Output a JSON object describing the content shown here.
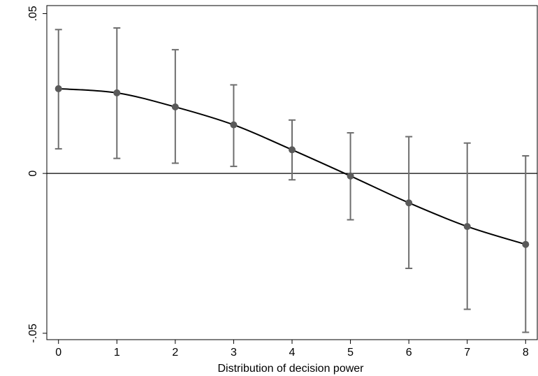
{
  "chart_data": {
    "type": "line",
    "title": "",
    "xlabel": "Distribution of decision power",
    "ylabel": "",
    "xlim": [
      -0.2,
      8.2
    ],
    "ylim": [
      -0.052,
      0.0525
    ],
    "x_ticks": [
      0,
      1,
      2,
      3,
      4,
      5,
      6,
      7,
      8
    ],
    "x_tick_labels": [
      "0",
      "1",
      "2",
      "3",
      "4",
      "5",
      "6",
      "7",
      "8"
    ],
    "y_ticks": [
      -0.05,
      0,
      0.05
    ],
    "y_tick_labels": [
      "-.05",
      "0",
      ".05"
    ],
    "reference_line_y": 0,
    "grid": false,
    "series": [
      {
        "x": [
          0,
          1,
          2,
          3,
          4,
          5,
          6,
          7,
          8
        ],
        "y": [
          0.0265,
          0.0252,
          0.0208,
          0.0152,
          0.0074,
          -0.0008,
          -0.0092,
          -0.0166,
          -0.0222
        ],
        "ci_low": [
          0.0077,
          0.0047,
          0.0032,
          0.0022,
          -0.002,
          -0.0145,
          -0.0297,
          -0.0425,
          -0.0497
        ],
        "ci_high": [
          0.045,
          0.0455,
          0.0387,
          0.0277,
          0.0167,
          0.0127,
          0.0115,
          0.0095,
          0.0055
        ]
      }
    ],
    "colors": {
      "line": "#000000",
      "marker": "#5a5a5a",
      "error_bar": "#6e6e6e",
      "axes": "#000000"
    }
  }
}
